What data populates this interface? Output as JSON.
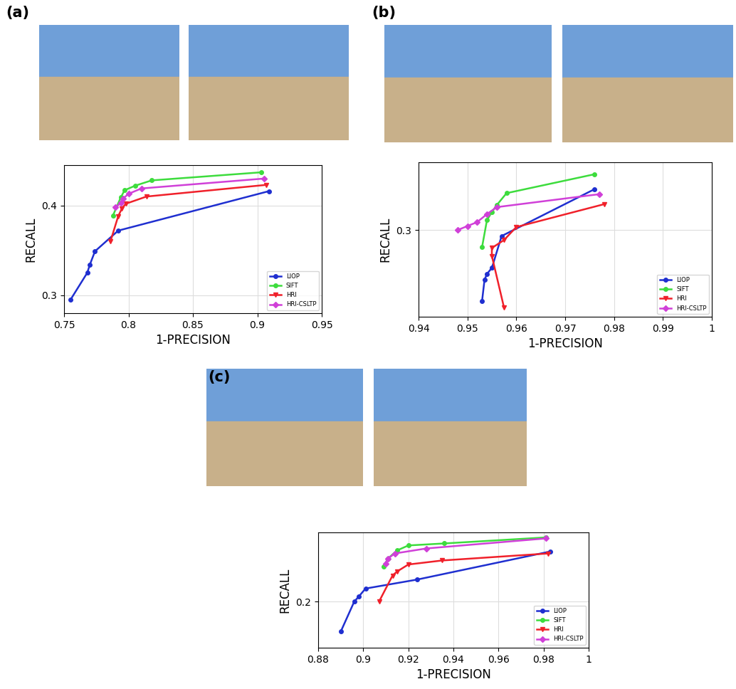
{
  "chart_data": [
    {
      "type": "line",
      "title": "(a)",
      "x_label": "1-PRECISION",
      "y_label": "RECALL",
      "xlim": [
        0.75,
        0.95
      ],
      "xticks": [
        0.75,
        0.8,
        0.85,
        0.9,
        0.95
      ],
      "ylim": [
        0.28,
        0.445
      ],
      "yticks": [
        0.3,
        0.4
      ],
      "grid": true,
      "legend": "lower right",
      "series": [
        {
          "name": "LIOP",
          "color": "#1f2fd0",
          "marker": "circle",
          "x": [
            0.755,
            0.768,
            0.77,
            0.774,
            0.792,
            0.909
          ],
          "values": [
            0.295,
            0.325,
            0.334,
            0.349,
            0.372,
            0.416
          ]
        },
        {
          "name": "SIFT",
          "color": "#3ddc3d",
          "marker": "circle",
          "x": [
            0.788,
            0.794,
            0.797,
            0.805,
            0.818,
            0.903
          ],
          "values": [
            0.389,
            0.409,
            0.417,
            0.422,
            0.428,
            0.437
          ]
        },
        {
          "name": "HRI",
          "color": "#f0202a",
          "marker": "triangle_down",
          "x": [
            0.786,
            0.792,
            0.795,
            0.798,
            0.814,
            0.907
          ],
          "values": [
            0.36,
            0.388,
            0.397,
            0.402,
            0.41,
            0.423
          ]
        },
        {
          "name": "HRI-CSLTP",
          "color": "#d040d8",
          "marker": "diamond",
          "x": [
            0.79,
            0.794,
            0.796,
            0.8,
            0.81,
            0.905
          ],
          "values": [
            0.398,
            0.403,
            0.408,
            0.413,
            0.419,
            0.43
          ]
        }
      ]
    },
    {
      "type": "line",
      "title": "(b)",
      "x_label": "1-PRECISION",
      "y_label": "RECALL",
      "xlim": [
        0.94,
        1
      ],
      "xticks": [
        0.94,
        0.95,
        0.96,
        0.97,
        0.98,
        0.99,
        1
      ],
      "ylim": [
        0.213,
        0.368
      ],
      "yticks": [
        0.3
      ],
      "grid": true,
      "legend": "lower right",
      "series": [
        {
          "name": "LIOP",
          "color": "#1f2fd0",
          "marker": "circle",
          "x": [
            0.953,
            0.9535,
            0.954,
            0.955,
            0.957,
            0.976
          ],
          "values": [
            0.229,
            0.25,
            0.256,
            0.262,
            0.294,
            0.341
          ]
        },
        {
          "name": "SIFT",
          "color": "#3ddc3d",
          "marker": "circle",
          "x": [
            0.953,
            0.954,
            0.955,
            0.956,
            0.958,
            0.976
          ],
          "values": [
            0.283,
            0.31,
            0.318,
            0.325,
            0.337,
            0.356
          ]
        },
        {
          "name": "HRI",
          "color": "#f0202a",
          "marker": "triangle_down",
          "x": [
            0.9575,
            0.955,
            0.955,
            0.9575,
            0.96,
            0.978
          ],
          "values": [
            0.222,
            0.274,
            0.282,
            0.29,
            0.303,
            0.326
          ]
        },
        {
          "name": "HRI-CSLTP",
          "color": "#d040d8",
          "marker": "diamond",
          "x": [
            0.948,
            0.95,
            0.952,
            0.954,
            0.956,
            0.977
          ],
          "values": [
            0.3,
            0.304,
            0.308,
            0.316,
            0.323,
            0.336
          ]
        }
      ]
    },
    {
      "type": "line",
      "title": "(c)",
      "x_label": "1-PRECISION",
      "y_label": "RECALL",
      "xlim": [
        0.88,
        1
      ],
      "xticks": [
        0.88,
        0.9,
        0.92,
        0.94,
        0.96,
        0.98,
        1
      ],
      "ylim": [
        0.154,
        0.269
      ],
      "yticks": [
        0.2
      ],
      "grid": true,
      "legend": "lower right",
      "series": [
        {
          "name": "LIOP",
          "color": "#1f2fd0",
          "marker": "circle",
          "x": [
            0.89,
            0.896,
            0.898,
            0.901,
            0.924,
            0.983
          ],
          "values": [
            0.17,
            0.2,
            0.205,
            0.213,
            0.222,
            0.25
          ]
        },
        {
          "name": "SIFT",
          "color": "#3ddc3d",
          "marker": "circle",
          "x": [
            0.909,
            0.911,
            0.915,
            0.92,
            0.936,
            0.981
          ],
          "values": [
            0.235,
            0.243,
            0.251,
            0.256,
            0.258,
            0.264
          ]
        },
        {
          "name": "HRI",
          "color": "#f0202a",
          "marker": "triangle_down",
          "x": [
            0.907,
            0.913,
            0.915,
            0.92,
            0.935,
            0.982
          ],
          "values": [
            0.2,
            0.226,
            0.23,
            0.237,
            0.241,
            0.248
          ]
        },
        {
          "name": "HRI-CSLTP",
          "color": "#d040d8",
          "marker": "diamond",
          "x": [
            0.91,
            0.911,
            0.914,
            0.928,
            0.981
          ],
          "values": [
            0.238,
            0.243,
            0.248,
            0.253,
            0.263
          ]
        }
      ]
    }
  ]
}
